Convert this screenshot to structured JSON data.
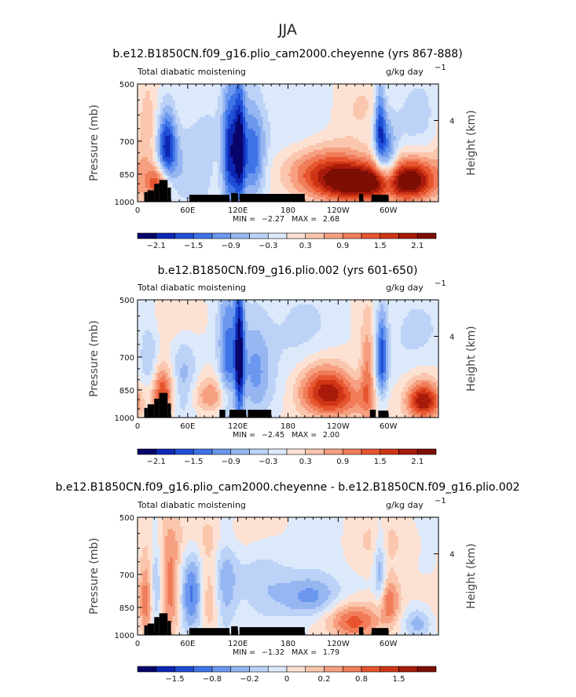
{
  "figure": {
    "season": "JJA"
  },
  "chart_data": [
    {
      "type": "heatmap",
      "title": "b.e12.B1850CN.f09_g16.plio_cam2000.cheyenne (yrs 867-888)",
      "left_label": "Total diabatic moistening",
      "right_label": "g/kg day",
      "units_exponent": "−1",
      "ylabel": "Pressure (mb)",
      "ylabel_right": "Height (km)",
      "pressure_ticks": [
        "500",
        "700",
        "850",
        "1000"
      ],
      "height_ticks": [
        "4"
      ],
      "longitude_ticks": [
        "0",
        "60E",
        "120E",
        "180",
        "120W",
        "60W"
      ],
      "min_label": "MIN =",
      "min_value": "−2.27",
      "max_label": "MAX =",
      "max_value": "2.68",
      "colorbar_labels": [
        "−2.1",
        "−1.5",
        "−0.9",
        "−0.3",
        "0.3",
        "0.9",
        "1.5",
        "2.1"
      ],
      "colors": [
        "#08046a",
        "#0d27b5",
        "#1f4ed6",
        "#3f74e6",
        "#6b98ee",
        "#96b6f2",
        "#bcd2f6",
        "#dce9fb",
        "#fde2d4",
        "#fac6ad",
        "#f6a081",
        "#f07c5a",
        "#e6552f",
        "#cf3515",
        "#a91b0b",
        "#7d0e04"
      ],
      "features": [
        {
          "lon": 35,
          "p": 720,
          "v": -1.9,
          "sx": 8,
          "sp": 110
        },
        {
          "lon": 25,
          "p": 900,
          "v": 1.6,
          "sx": 10,
          "sp": 70
        },
        {
          "lon": 10,
          "p": 700,
          "v": 0.6,
          "sx": 10,
          "sp": 150
        },
        {
          "lon": 70,
          "p": 820,
          "v": -0.6,
          "sx": 25,
          "sp": 150
        },
        {
          "lon": 110,
          "p": 760,
          "v": -1.8,
          "sx": 6,
          "sp": 190
        },
        {
          "lon": 122,
          "p": 740,
          "v": -2.0,
          "sx": 5,
          "sp": 200
        },
        {
          "lon": 138,
          "p": 760,
          "v": -1.4,
          "sx": 10,
          "sp": 150
        },
        {
          "lon": 175,
          "p": 620,
          "v": -0.35,
          "sx": 30,
          "sp": 120
        },
        {
          "lon": 210,
          "p": 820,
          "v": 0.5,
          "sx": 40,
          "sp": 80
        },
        {
          "lon": 270,
          "p": 900,
          "v": 2.0,
          "sx": 35,
          "sp": 70
        },
        {
          "lon": 245,
          "p": 860,
          "v": 1.0,
          "sx": 40,
          "sp": 90
        },
        {
          "lon": 290,
          "p": 650,
          "v": -1.7,
          "sx": 5,
          "sp": 110
        },
        {
          "lon": 300,
          "p": 800,
          "v": -1.2,
          "sx": 7,
          "sp": 120
        },
        {
          "lon": 330,
          "p": 880,
          "v": 1.9,
          "sx": 20,
          "sp": 80
        },
        {
          "lon": 265,
          "p": 580,
          "v": 0.3,
          "sx": 30,
          "sp": 80
        },
        {
          "lon": 320,
          "p": 640,
          "v": -0.4,
          "sx": 30,
          "sp": 120
        }
      ]
    },
    {
      "type": "heatmap",
      "title": "b.e12.B1850CN.f09_g16.plio.002 (yrs 601-650)",
      "left_label": "Total diabatic moistening",
      "right_label": "g/kg day",
      "units_exponent": "−1",
      "ylabel": "Pressure (mb)",
      "ylabel_right": "Height (km)",
      "pressure_ticks": [
        "500",
        "700",
        "850",
        "1000"
      ],
      "height_ticks": [
        "4"
      ],
      "longitude_ticks": [
        "0",
        "60E",
        "120E",
        "180",
        "120W",
        "60W"
      ],
      "min_label": "MIN =",
      "min_value": "−2.45",
      "max_label": "MAX =",
      "max_value": "2.00",
      "colorbar_labels": [
        "−2.1",
        "−1.5",
        "−0.9",
        "−0.3",
        "0.3",
        "0.9",
        "1.5",
        "2.1"
      ],
      "colors": [
        "#08046a",
        "#0d27b5",
        "#1f4ed6",
        "#3f74e6",
        "#6b98ee",
        "#96b6f2",
        "#bcd2f6",
        "#dce9fb",
        "#fde2d4",
        "#fac6ad",
        "#f6a081",
        "#f07c5a",
        "#e6552f",
        "#cf3515",
        "#a91b0b",
        "#7d0e04"
      ],
      "features": [
        {
          "lon": 30,
          "p": 860,
          "v": 1.7,
          "sx": 10,
          "sp": 90
        },
        {
          "lon": 15,
          "p": 720,
          "v": -0.6,
          "sx": 8,
          "sp": 120
        },
        {
          "lon": 55,
          "p": 800,
          "v": -0.7,
          "sx": 12,
          "sp": 150
        },
        {
          "lon": 108,
          "p": 720,
          "v": -1.3,
          "sx": 8,
          "sp": 200
        },
        {
          "lon": 122,
          "p": 700,
          "v": -2.0,
          "sx": 4,
          "sp": 220
        },
        {
          "lon": 140,
          "p": 760,
          "v": -0.9,
          "sx": 14,
          "sp": 160
        },
        {
          "lon": 90,
          "p": 880,
          "v": 0.8,
          "sx": 20,
          "sp": 60
        },
        {
          "lon": 225,
          "p": 860,
          "v": 1.7,
          "sx": 22,
          "sp": 90
        },
        {
          "lon": 260,
          "p": 900,
          "v": 0.6,
          "sx": 25,
          "sp": 70
        },
        {
          "lon": 292,
          "p": 700,
          "v": -1.6,
          "sx": 5,
          "sp": 130
        },
        {
          "lon": 275,
          "p": 780,
          "v": 1.0,
          "sx": 6,
          "sp": 160
        },
        {
          "lon": 342,
          "p": 910,
          "v": 2.0,
          "sx": 14,
          "sp": 70
        },
        {
          "lon": 180,
          "p": 600,
          "v": -0.4,
          "sx": 30,
          "sp": 110
        },
        {
          "lon": 60,
          "p": 560,
          "v": 0.3,
          "sx": 20,
          "sp": 60
        },
        {
          "lon": 320,
          "p": 620,
          "v": -0.3,
          "sx": 30,
          "sp": 110
        }
      ]
    },
    {
      "type": "heatmap",
      "title": "b.e12.B1850CN.f09_g16.plio_cam2000.cheyenne - b.e12.B1850CN.f09_g16.plio.002",
      "left_label": "Total diabatic moistening",
      "right_label": "g/kg day",
      "units_exponent": "−1",
      "ylabel": "Pressure (mb)",
      "ylabel_right": "Height (km)",
      "pressure_ticks": [
        "500",
        "700",
        "850",
        "1000"
      ],
      "height_ticks": [
        "4"
      ],
      "longitude_ticks": [
        "0",
        "60E",
        "120E",
        "180",
        "120W",
        "60W"
      ],
      "min_label": "MIN =",
      "min_value": "−1.32",
      "max_label": "MAX =",
      "max_value": "1.79",
      "colorbar_labels": [
        "−1.5",
        "−0.8",
        "−0.2",
        "0",
        "0.2",
        "0.8",
        "1.5"
      ],
      "colors": [
        "#08046a",
        "#0d27b5",
        "#1f4ed6",
        "#3f74e6",
        "#6b98ee",
        "#96b6f2",
        "#bcd2f6",
        "#dce9fb",
        "#fde2d4",
        "#fac6ad",
        "#f6a081",
        "#f07c5a",
        "#e6552f",
        "#cf3515",
        "#a91b0b",
        "#7d0e04"
      ],
      "features": [
        {
          "lon": 10,
          "p": 820,
          "v": 1.2,
          "sx": 6,
          "sp": 120
        },
        {
          "lon": 22,
          "p": 720,
          "v": -0.7,
          "sx": 5,
          "sp": 140
        },
        {
          "lon": 40,
          "p": 780,
          "v": 1.2,
          "sx": 8,
          "sp": 150
        },
        {
          "lon": 65,
          "p": 790,
          "v": -1.3,
          "sx": 10,
          "sp": 130
        },
        {
          "lon": 85,
          "p": 780,
          "v": 0.6,
          "sx": 8,
          "sp": 160
        },
        {
          "lon": 105,
          "p": 760,
          "v": -0.8,
          "sx": 10,
          "sp": 150
        },
        {
          "lon": 150,
          "p": 700,
          "v": -0.5,
          "sx": 25,
          "sp": 120
        },
        {
          "lon": 210,
          "p": 800,
          "v": -1.1,
          "sx": 25,
          "sp": 70
        },
        {
          "lon": 260,
          "p": 920,
          "v": 1.4,
          "sx": 22,
          "sp": 70
        },
        {
          "lon": 300,
          "p": 820,
          "v": 1.2,
          "sx": 10,
          "sp": 80
        },
        {
          "lon": 290,
          "p": 700,
          "v": -1.0,
          "sx": 5,
          "sp": 120
        },
        {
          "lon": 335,
          "p": 930,
          "v": -0.8,
          "sx": 12,
          "sp": 60
        },
        {
          "lon": 90,
          "p": 560,
          "v": 0.4,
          "sx": 40,
          "sp": 60
        },
        {
          "lon": 300,
          "p": 580,
          "v": 0.3,
          "sx": 30,
          "sp": 60
        }
      ]
    }
  ]
}
